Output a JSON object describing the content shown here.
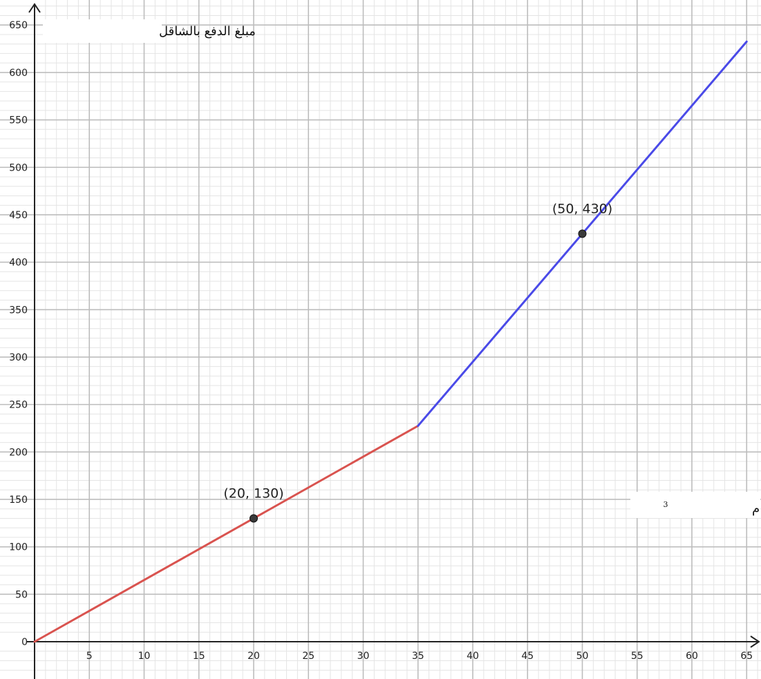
{
  "chart_data": {
    "type": "line",
    "xlabel": "كمية المياه م",
    "xlabel_superscript": "3",
    "ylabel": "مبلغ الدفع بالشاقل",
    "xlim": [
      0,
      65
    ],
    "ylim": [
      0,
      650
    ],
    "x_ticks": [
      "5",
      "10",
      "15",
      "20",
      "25",
      "30",
      "35",
      "40",
      "45",
      "50",
      "55",
      "60",
      "65"
    ],
    "y_ticks": [
      "0",
      "50",
      "100",
      "150",
      "200",
      "250",
      "300",
      "350",
      "400",
      "450",
      "500",
      "550",
      "600",
      "650"
    ],
    "grid": true,
    "series": [
      {
        "color": "#d9534f",
        "x": [
          0,
          35
        ],
        "y": [
          0,
          227.5
        ]
      },
      {
        "color": "#4a4ae8",
        "x": [
          35,
          65
        ],
        "y": [
          227.5,
          632.5
        ]
      }
    ],
    "points": [
      {
        "x": 20,
        "y": 130,
        "label": "(20, 130)"
      },
      {
        "x": 50,
        "y": 430,
        "label": "(50, 430)"
      }
    ]
  }
}
